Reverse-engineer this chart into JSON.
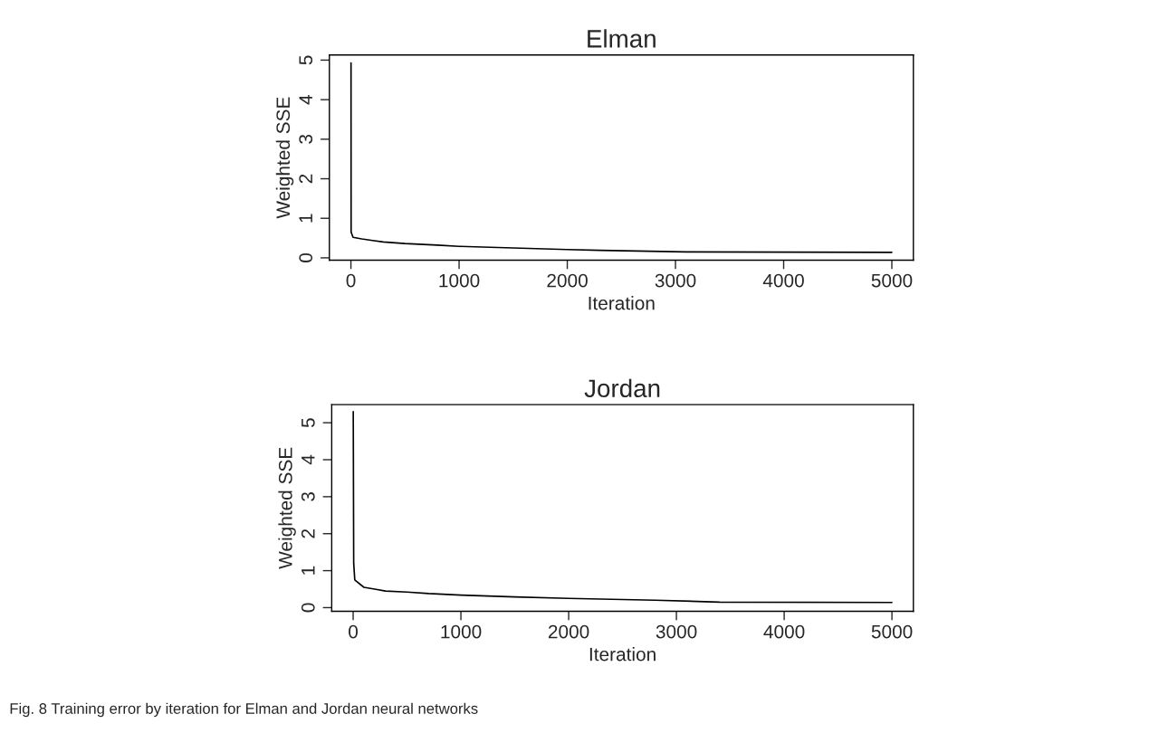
{
  "chart_data": [
    {
      "type": "line",
      "title": "Elman",
      "xlabel": "Iteration",
      "ylabel": "Weighted SSE",
      "xlim": [
        -199,
        5199
      ],
      "ylim": [
        -0.06,
        5.13
      ],
      "xticks": [
        0,
        1000,
        2000,
        3000,
        4000,
        5000
      ],
      "yticks": [
        0,
        1,
        2,
        3,
        4,
        5
      ],
      "grid": false,
      "legend": false,
      "marker": "none",
      "line_style": "solid",
      "series": [
        {
          "color": "#000000",
          "x": [
            1,
            2,
            20,
            100,
            200,
            300,
            500,
            800,
            1000,
            1500,
            2000,
            2300,
            3100,
            5000
          ],
          "values": [
            4.93,
            0.65,
            0.52,
            0.48,
            0.44,
            0.4,
            0.36,
            0.32,
            0.29,
            0.25,
            0.21,
            0.19,
            0.15,
            0.14
          ]
        }
      ]
    },
    {
      "type": "line",
      "title": "Jordan",
      "xlabel": "Iteration",
      "ylabel": "Weighted SSE",
      "xlim": [
        -199,
        5199
      ],
      "ylim": [
        -0.1,
        5.49
      ],
      "xticks": [
        0,
        1000,
        2000,
        3000,
        4000,
        5000
      ],
      "yticks": [
        0,
        1,
        2,
        3,
        4,
        5
      ],
      "grid": false,
      "legend": false,
      "marker": "none",
      "line_style": "solid",
      "series": [
        {
          "color": "#000000",
          "x": [
            1,
            5,
            15,
            100,
            200,
            300,
            500,
            700,
            1000,
            1500,
            2000,
            2800,
            3400,
            5000
          ],
          "values": [
            5.3,
            1.2,
            0.75,
            0.55,
            0.5,
            0.45,
            0.42,
            0.38,
            0.34,
            0.29,
            0.25,
            0.2,
            0.15,
            0.14
          ]
        }
      ],
      "annotations": [
        "Fig. 8 Training error by iteration for Elman and Jordan neural networks"
      ]
    }
  ]
}
